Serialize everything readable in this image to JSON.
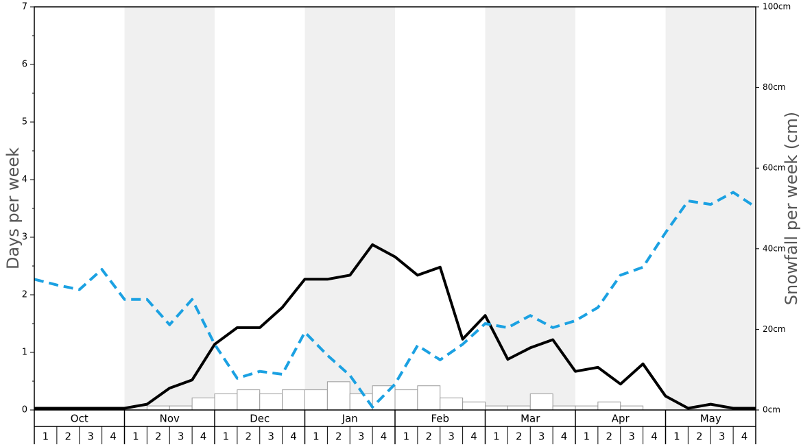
{
  "chart_data": {
    "type": "line",
    "ylabel_left": "Days per week",
    "ylabel_right": "Snowfall per week (cm)",
    "y_left_ticks": [
      "0",
      "1",
      "2",
      "3",
      "4",
      "5",
      "6",
      "7"
    ],
    "y_left_lim": [
      0,
      7
    ],
    "y_right_ticks": [
      "0cm",
      "20cm",
      "40cm",
      "60cm",
      "80cm",
      "100cm"
    ],
    "y_right_lim": [
      0,
      100
    ],
    "months": [
      "Oct",
      "Nov",
      "Dec",
      "Jan",
      "Feb",
      "Mar",
      "Apr",
      "May"
    ],
    "weeks": [
      "1",
      "2",
      "3",
      "4"
    ],
    "shaded_months": [
      "Nov",
      "Jan",
      "Mar",
      "May"
    ],
    "colors": {
      "black_line": "#000000",
      "blue_line": "#1ba1e2",
      "shade": "#f0f0f0",
      "bar_fill": "#ffffff",
      "bar_stroke": "#999999"
    },
    "series": [
      {
        "style": "solid",
        "axis": "left",
        "values": [
          0.03,
          0.03,
          0.03,
          0.03,
          0.03,
          0.1,
          0.38,
          0.52,
          1.14,
          1.43,
          1.43,
          1.78,
          2.27,
          2.27,
          2.34,
          2.87,
          2.66,
          2.34,
          2.48,
          1.23,
          1.64,
          0.88,
          1.08,
          1.22,
          0.67,
          0.74,
          0.45,
          0.8,
          0.24,
          0.03,
          0.1,
          0.03,
          0.03
        ]
      },
      {
        "style": "dashed",
        "axis": "left",
        "values": [
          2.27,
          2.17,
          2.09,
          2.44,
          1.92,
          1.92,
          1.48,
          1.92,
          1.14,
          0.55,
          0.67,
          0.62,
          1.35,
          0.95,
          0.6,
          0.05,
          0.45,
          1.12,
          0.87,
          1.14,
          1.5,
          1.43,
          1.64,
          1.43,
          1.55,
          1.78,
          2.34,
          2.48,
          3.08,
          3.63,
          3.57,
          3.78,
          3.52
        ]
      }
    ],
    "bars": {
      "axis": "right",
      "values": [
        0,
        0,
        0,
        0,
        0,
        1,
        1,
        3,
        4,
        5,
        4,
        5,
        5,
        7,
        4,
        6,
        5,
        6,
        3,
        2,
        1,
        1,
        4,
        1,
        1,
        2,
        1,
        0,
        0,
        0,
        0,
        0
      ]
    }
  }
}
